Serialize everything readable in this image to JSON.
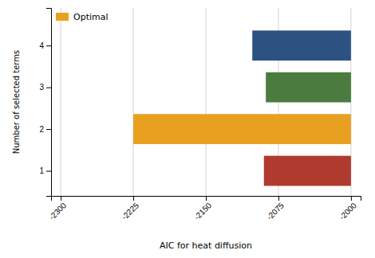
{
  "chart_data": {
    "type": "bar",
    "orientation": "horizontal",
    "categories": [
      1,
      2,
      3,
      4
    ],
    "values": [
      -2090,
      -2225,
      -2088,
      -2102
    ],
    "base": [
      -2000,
      -2000,
      -2000,
      -2000
    ],
    "colors": [
      "#b03a2e",
      "#e8a020",
      "#4a7c3f",
      "#2c5282"
    ],
    "xlabel": "AIC for heat diffusion",
    "ylabel": "Number of selected terms",
    "xlim": [
      -2310,
      -1990
    ],
    "xticks": [
      -2300,
      -2225,
      -2150,
      -2075,
      -2000
    ],
    "ylim": [
      0.4,
      4.9
    ],
    "yticks": [
      1,
      2,
      3,
      4
    ],
    "grid": "x",
    "legend": "upper left",
    "legend_entries": [
      {
        "name": "Optimal",
        "color": "#e8a020"
      }
    ]
  }
}
